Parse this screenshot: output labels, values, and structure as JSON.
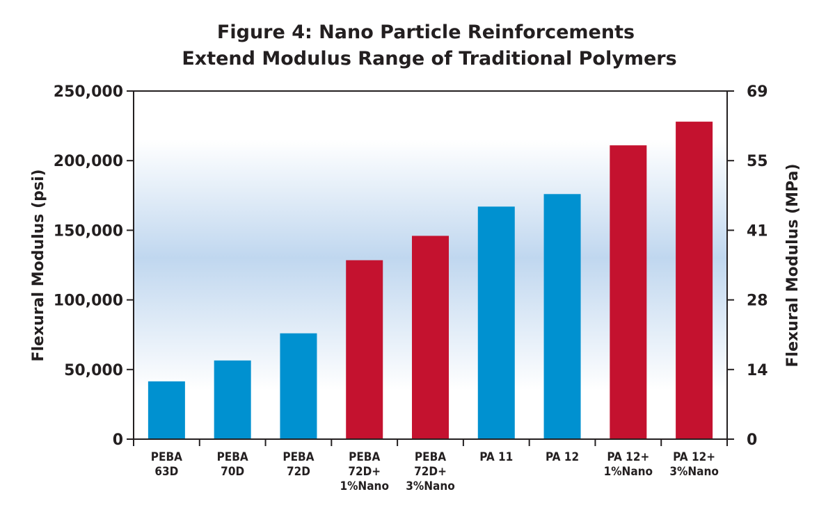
{
  "chart_data": {
    "type": "bar",
    "title": [
      "Figure 4: Nano Particle Reinforcements",
      "Extend Modulus Range of Traditional Polymers"
    ],
    "categories": [
      [
        "PEBA",
        "63D"
      ],
      [
        "PEBA",
        "70D"
      ],
      [
        "PEBA",
        "72D"
      ],
      [
        "PEBA",
        "72D+",
        "1%Nano"
      ],
      [
        "PEBA",
        "72D+",
        "3%Nano"
      ],
      [
        "PA 11"
      ],
      [
        "PA 12"
      ],
      [
        "PA 12+",
        "1%Nano"
      ],
      [
        "PA 12+",
        "3%Nano"
      ]
    ],
    "values": [
      41500,
      56500,
      76000,
      128500,
      146000,
      167000,
      176000,
      211000,
      228000
    ],
    "bar_colors": [
      "#0091d0",
      "#0091d0",
      "#0091d0",
      "#c4122f",
      "#c4122f",
      "#0091d0",
      "#0091d0",
      "#c4122f",
      "#c4122f"
    ],
    "ylabel": "Flexural Modulus (psi)",
    "ylim": [
      0,
      250000
    ],
    "yticks": [
      0,
      50000,
      100000,
      150000,
      200000,
      250000
    ],
    "ytick_labels": [
      "0",
      "50,000",
      "100,000",
      "150,000",
      "200,000",
      "250,000"
    ],
    "y2label": "Flexural Modulus (MPa)",
    "y2tick_labels": [
      "0",
      "14",
      "28",
      "41",
      "55",
      "69"
    ],
    "grid": false,
    "legend": "none",
    "colors": {
      "blue_bars": "#0091d0",
      "red_bars": "#c4122f",
      "background_gradient": "#c0d7ef"
    }
  }
}
